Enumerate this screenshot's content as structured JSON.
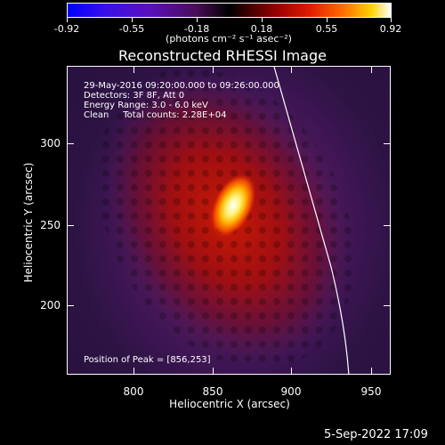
{
  "colorbar": {
    "tick_labels": [
      "-0.92",
      "-0.55",
      "-0.18",
      "0.18",
      "0.55",
      "0.92"
    ],
    "units": "(photons cm⁻² s⁻¹ asec⁻²)"
  },
  "plot": {
    "title": "Reconstructed RHESSI Image",
    "info_lines": [
      "29-May-2016 09:20:00.000 to 09:26:00.000",
      "Detectors: 3F 8F, Att 0",
      "Energy Range: 3.0 - 6.0 keV",
      "Clean     Total counts: 2.28E+04"
    ],
    "peak_text": "Position of Peak = [856,253]",
    "x_label": "Heliocentric X (arcsec)",
    "y_label": "Heliocentric Y (arcsec)",
    "x_ticks": [
      "800",
      "850",
      "900",
      "950"
    ],
    "y_ticks": [
      "300",
      "250",
      "200"
    ]
  },
  "footer": {
    "datestamp": "5-Sep-2022 17:09"
  },
  "colors": {
    "background": "#000000",
    "axes": "#ffffff",
    "limb_line": "#ffffff"
  }
}
